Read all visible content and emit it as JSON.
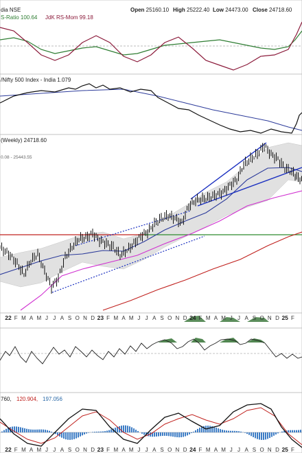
{
  "header": {
    "symbol": "dia NSE",
    "ohlc": [
      {
        "label": "Open",
        "value": "25160.10"
      },
      {
        "label": "High",
        "value": "25222.40"
      },
      {
        "label": "Low",
        "value": "24473.00"
      },
      {
        "label": "Close",
        "value": "24718.60"
      }
    ]
  },
  "panels": {
    "rs_ratio": {
      "label_a": "S-Ratio 100.64",
      "label_b": "JdK RS-Mom 99.18",
      "color_a": "#2e7d32",
      "color_b": "#8b1a3a"
    },
    "relative": {
      "label": "/Nifty 500 Index - India 1.079"
    },
    "price": {
      "label": "(Weekly) 24718.60",
      "sub_label": "0.08 - 25443.55",
      "colors": {
        "candles": "#111111",
        "ma_short": "#2b3a9a",
        "ma_mid": "#d030d0",
        "ma_long": "#c0201d",
        "support_line": "#c0201d",
        "green_line": "#2e8b2e",
        "trendline": "#1a2fc0"
      }
    },
    "rsi": {
      "label": ""
    },
    "macd": {
      "label_a": "760,",
      "label_b": "120.904,",
      "label_c": "197.056"
    }
  },
  "x_axis": {
    "ticks": [
      "22",
      "F",
      "M",
      "A",
      "M",
      "J",
      "J",
      "A",
      "S",
      "O",
      "N",
      "D",
      "23",
      "F",
      "M",
      "A",
      "M",
      "J",
      "J",
      "A",
      "S",
      "O",
      "N",
      "D",
      "24",
      "F",
      "M",
      "A",
      "M",
      "J",
      "J",
      "A",
      "S",
      "O",
      "N",
      "D",
      "25",
      "F"
    ],
    "bold": [
      "22",
      "23",
      "24",
      "25"
    ]
  },
  "chart_data": {
    "type": "line",
    "title": "(Weekly) 24718.60",
    "series": [
      {
        "name": "S-Ratio",
        "last": 100.64
      },
      {
        "name": "JdK RS-Mom",
        "last": 99.18
      },
      {
        "name": "Nifty 500 Index - India",
        "last": 1.079
      }
    ],
    "price_close": 24718.6,
    "ohlc": {
      "open": 25160.1,
      "high": 25222.4,
      "low": 24473.0,
      "close": 24718.6
    },
    "macd_values": [
      120.904,
      197.056
    ]
  }
}
